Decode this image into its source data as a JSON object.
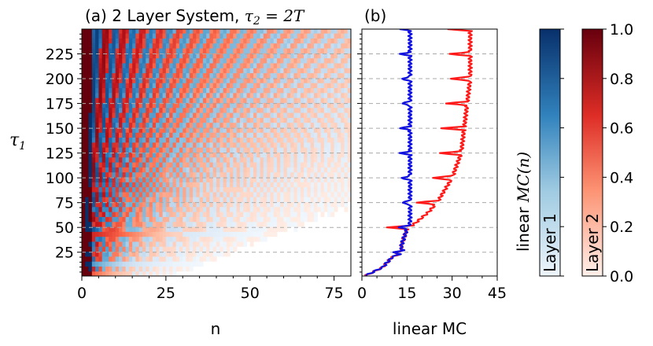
{
  "chart_data": [
    {
      "type": "heatmap",
      "panel_label": "(a)",
      "title_text": "2 Layer System, ",
      "title_math": "τ",
      "title_math_sub": "2",
      "title_math_rest": " = 2T",
      "xlabel": "n",
      "ylabel": "τ",
      "ylabel_sub": "1",
      "xlim": [
        0,
        80
      ],
      "ylim": [
        1,
        250
      ],
      "xticks": [
        "0",
        "25",
        "50",
        "75"
      ],
      "yticks": [
        "25",
        "50",
        "75",
        "100",
        "125",
        "150",
        "175",
        "200",
        "225"
      ],
      "dashed_gridlines_y": [
        25,
        50,
        75,
        100,
        125,
        150,
        175,
        200,
        225
      ],
      "colormaps": [
        "blue (Layer 1)",
        "red (Layer 2)"
      ],
      "description_stripes": "Alternating dark red and dark blue diagonal stripes fanning out from the origin; Layer 1 (blue) memory at n ≈ k·τ1, Layer 2 (red) between; intensity fades to white as n grows."
    },
    {
      "type": "line",
      "panel_label": "(b)",
      "xlabel": "linear MC",
      "xlim": [
        0,
        45
      ],
      "xticks": [
        "0",
        "15",
        "30",
        "45"
      ],
      "ylim": [
        1,
        250
      ],
      "series": [
        {
          "color": "#1010e0",
          "tau1": [
            1,
            10,
            20,
            25,
            30,
            40,
            48,
            55,
            75,
            100,
            125,
            150,
            175,
            200,
            225,
            250
          ],
          "x": [
            1,
            7,
            10,
            14,
            13,
            14,
            15,
            16,
            16,
            16,
            16,
            16,
            16,
            16,
            16,
            16
          ]
        },
        {
          "color": "#ff1a1a",
          "tau1": [
            1,
            10,
            20,
            25,
            30,
            40,
            48,
            55,
            65,
            75,
            90,
            100,
            125,
            150,
            175,
            200,
            225,
            250
          ],
          "x": [
            1,
            7,
            10,
            14,
            13,
            14,
            15,
            18,
            22,
            25,
            28,
            30,
            33,
            34,
            35,
            36,
            36,
            36
          ]
        }
      ]
    },
    {
      "type": "colorbar",
      "ylabel": "linear ",
      "ylabel_math": "MC(n)",
      "ticks": [
        "0.0",
        "0.2",
        "0.4",
        "0.6",
        "0.8",
        "1.0"
      ],
      "bars": [
        {
          "label": "Layer 1",
          "color_low": "#eef5fb",
          "color_high": "#08306b"
        },
        {
          "label": "Layer 2",
          "color_low": "#fff0ea",
          "color_high": "#67000d"
        }
      ]
    }
  ]
}
